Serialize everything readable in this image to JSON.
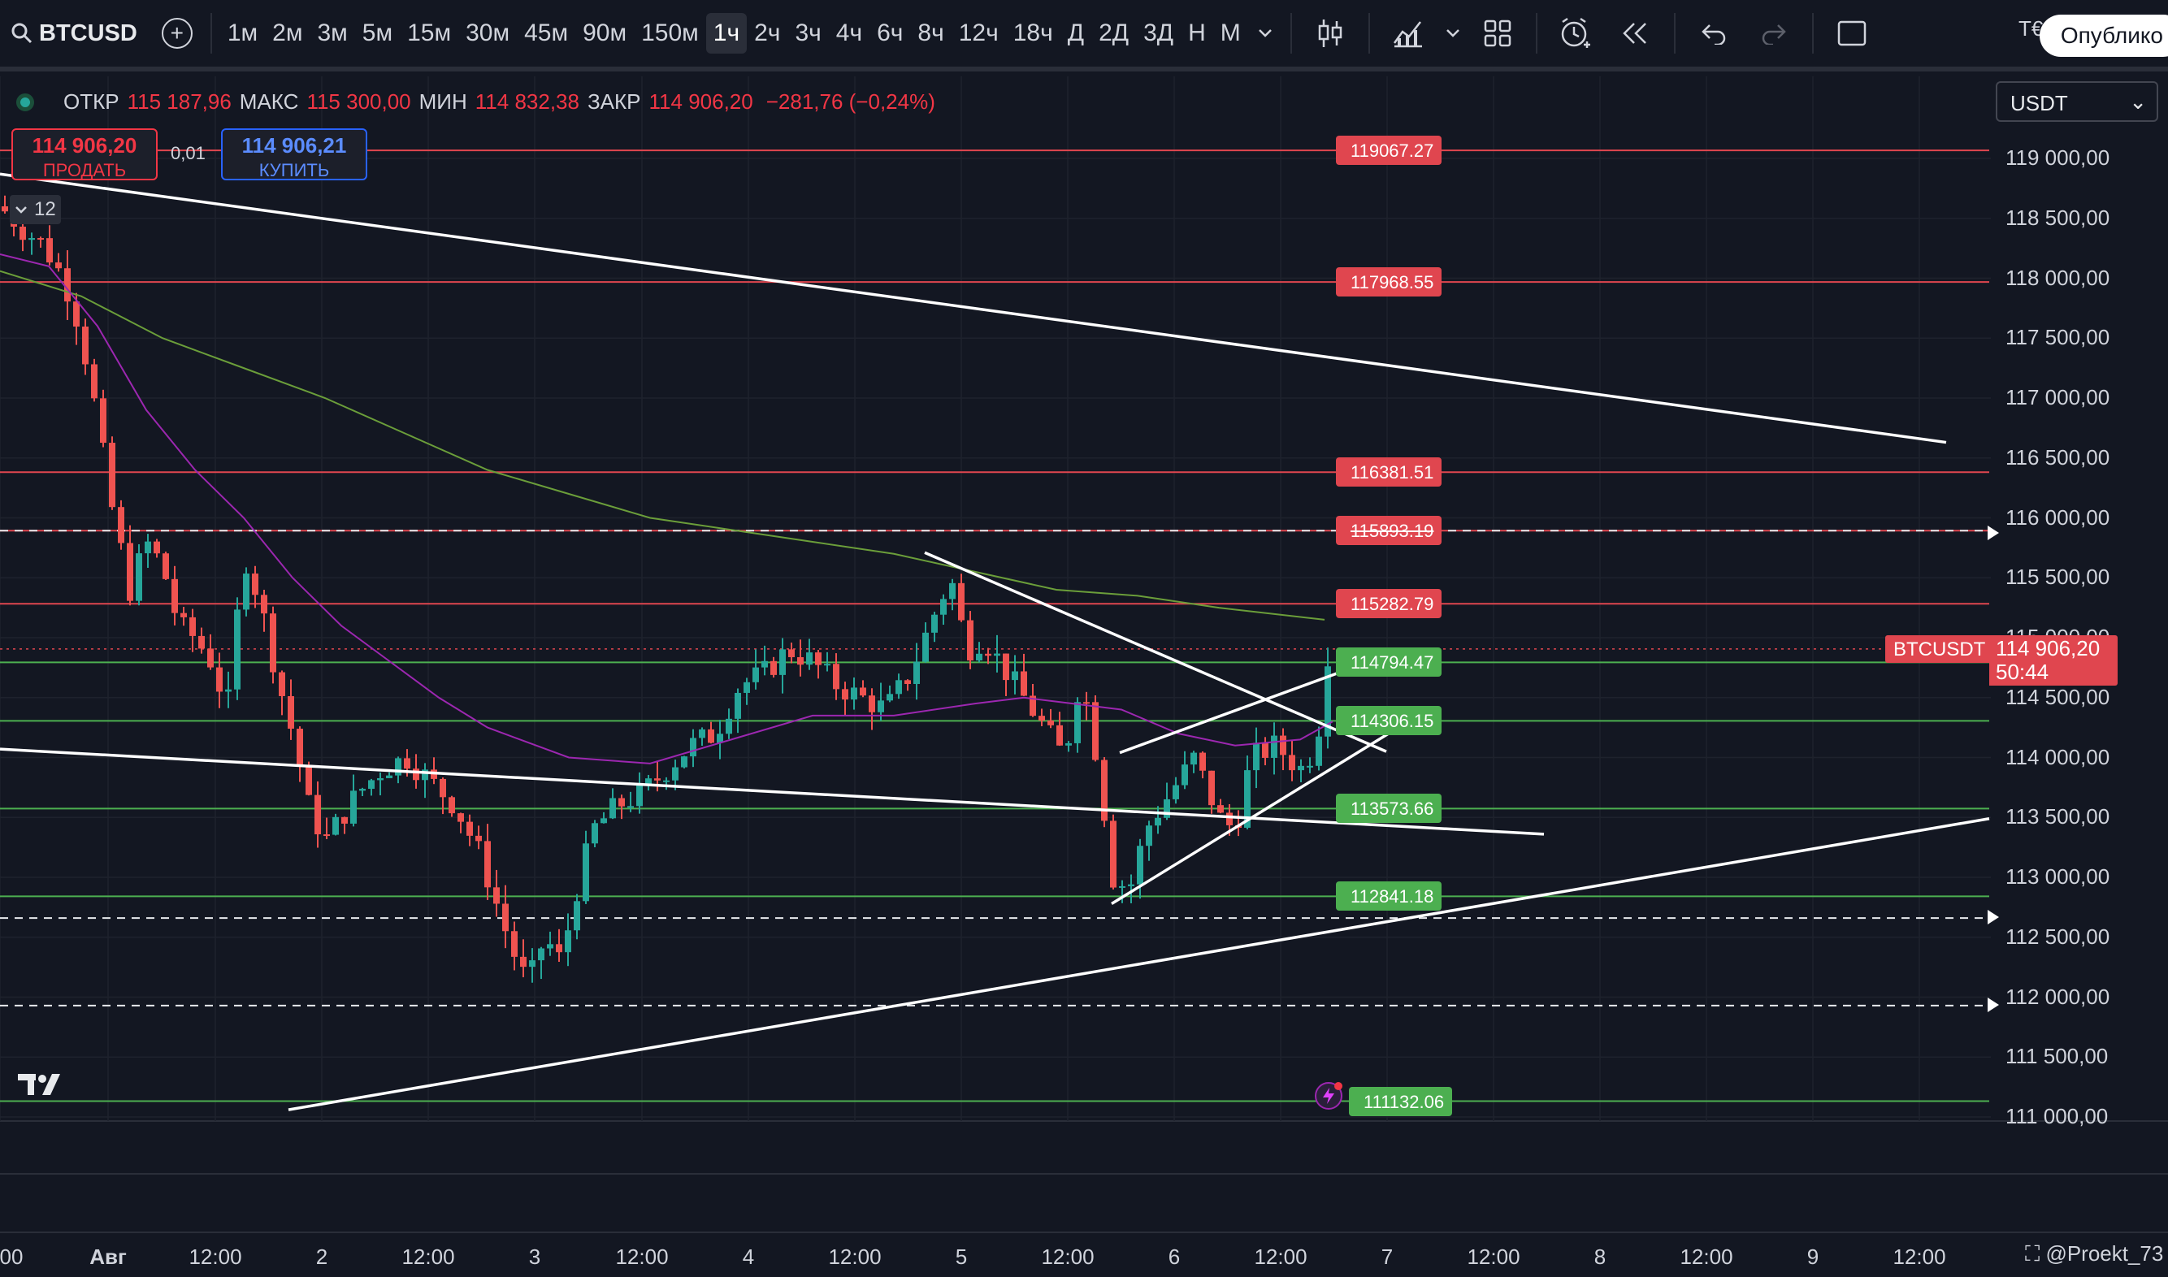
{
  "toolbar": {
    "symbol": "BTCUSD",
    "intervals": [
      "1м",
      "2м",
      "3м",
      "5м",
      "15м",
      "30м",
      "45м",
      "90м",
      "150м",
      "1ч",
      "2ч",
      "3ч",
      "4ч",
      "6ч",
      "8ч",
      "12ч",
      "18ч",
      "Д",
      "2Д",
      "3Д",
      "Н",
      "М"
    ],
    "active_interval": "1ч",
    "publish_label": "Опублико",
    "tv_short": "T€"
  },
  "legend": {
    "open_label": "ОТКР",
    "open_value": "115 187,96",
    "high_label": "МАКС",
    "high_value": "115 300,00",
    "low_label": "МИН",
    "low_value": "114 832,38",
    "close_label": "ЗАКР",
    "close_value": "114 906,20",
    "change": "−281,76 (−0,24%)"
  },
  "trade": {
    "sell_price": "114 906,20",
    "sell_label": "ПРОДАТЬ",
    "buy_price": "114 906,21",
    "buy_label": "КУПИТЬ",
    "lot": "0,01"
  },
  "indicator_count": "12",
  "currency": "USDT",
  "price_axis": [
    "119 000,00",
    "118 500,00",
    "118 000,00",
    "117 500,00",
    "117 000,00",
    "116 500,00",
    "116 000,00",
    "115 500,00",
    "115 000,00",
    "114 500,00",
    "114 000,00",
    "113 500,00",
    "113 000,00",
    "112 500,00",
    "112 000,00",
    "111 500,00",
    "111 000,00"
  ],
  "hlines": [
    {
      "label": "119067.27",
      "price": 119067.27,
      "color": "red"
    },
    {
      "label": "117968.55",
      "price": 117968.55,
      "color": "red"
    },
    {
      "label": "116381.51",
      "price": 116381.51,
      "color": "red"
    },
    {
      "label": "115893.19",
      "price": 115893.19,
      "color": "red",
      "struck": true
    },
    {
      "label": "115282.79",
      "price": 115282.79,
      "color": "red"
    },
    {
      "label": "114794.47",
      "price": 114794.47,
      "color": "green"
    },
    {
      "label": "114306.15",
      "price": 114306.15,
      "color": "green"
    },
    {
      "label": "113573.66",
      "price": 113573.66,
      "color": "green"
    },
    {
      "label": "112841.18",
      "price": 112841.18,
      "color": "green"
    },
    {
      "label": "111132.06",
      "price": 111132.06,
      "color": "green"
    }
  ],
  "ticker_tag": "BTCUSDT",
  "last_price": "114 906,20",
  "countdown": "50:44",
  "time_axis": [
    "00",
    "Авг",
    "12:00",
    "2",
    "12:00",
    "3",
    "12:00",
    "4",
    "12:00",
    "5",
    "12:00",
    "6",
    "12:00",
    "7",
    "12:00",
    "8",
    "12:00",
    "9",
    "12:00"
  ],
  "watermark": "@Proekt_73",
  "colors": {
    "up": "#26a69a",
    "down": "#ef5350",
    "bg": "#131722",
    "accent_red": "#e0464f",
    "accent_green": "#4caf50"
  }
}
